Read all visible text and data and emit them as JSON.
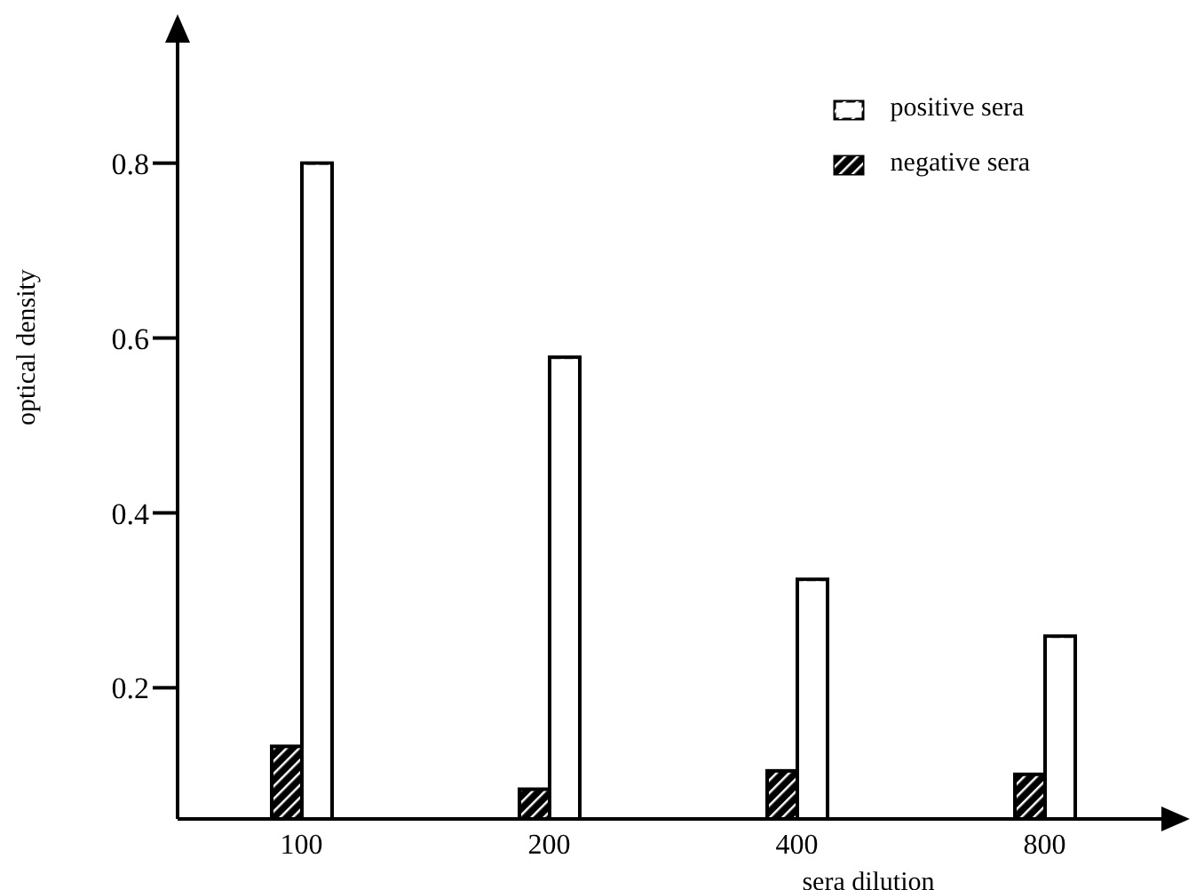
{
  "chart_data": {
    "type": "bar",
    "xlabel": "sera dilution",
    "ylabel": "optical density",
    "categories": [
      "100",
      "200",
      "400",
      "800"
    ],
    "series": [
      {
        "name": "negative sera",
        "color": "#000000",
        "values": [
          0.133,
          0.084,
          0.105,
          0.101
        ]
      },
      {
        "name": "positive sera",
        "color": "#ffffff",
        "values": [
          0.8,
          0.578,
          0.324,
          0.259
        ]
      }
    ],
    "ylim": [
      0.05,
      0.95
    ],
    "yticks": [
      0.2,
      0.4,
      0.6,
      0.8
    ],
    "grid": false,
    "legend": "top right"
  }
}
